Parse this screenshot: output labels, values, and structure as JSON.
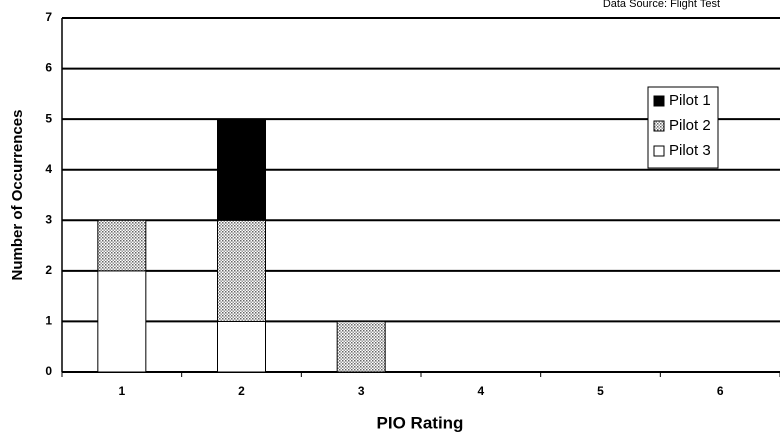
{
  "chart_data": {
    "type": "stacked-bar",
    "subtitle": "Data Source: Flight Test",
    "x_label": "PIO Rating",
    "y_label": "Number of Occurrences",
    "categories": [
      "1",
      "2",
      "3",
      "4",
      "5",
      "6"
    ],
    "series": [
      {
        "name": "Pilot 1",
        "color": "#000000",
        "values": [
          0,
          2,
          0,
          0,
          0,
          0
        ]
      },
      {
        "name": "Pilot 2",
        "color": "#b0b0b0",
        "pattern": "dots",
        "values": [
          1,
          2,
          1,
          0,
          0,
          0
        ]
      },
      {
        "name": "Pilot 3",
        "color": "#ffffff",
        "values": [
          2,
          1,
          0,
          0,
          0,
          0
        ]
      }
    ],
    "stack_order": "last-series-at-bottom",
    "ylim": [
      0,
      7
    ],
    "yticks": [
      0,
      1,
      2,
      3,
      4,
      5,
      6,
      7
    ],
    "grid": true,
    "legend": "upper-right"
  }
}
